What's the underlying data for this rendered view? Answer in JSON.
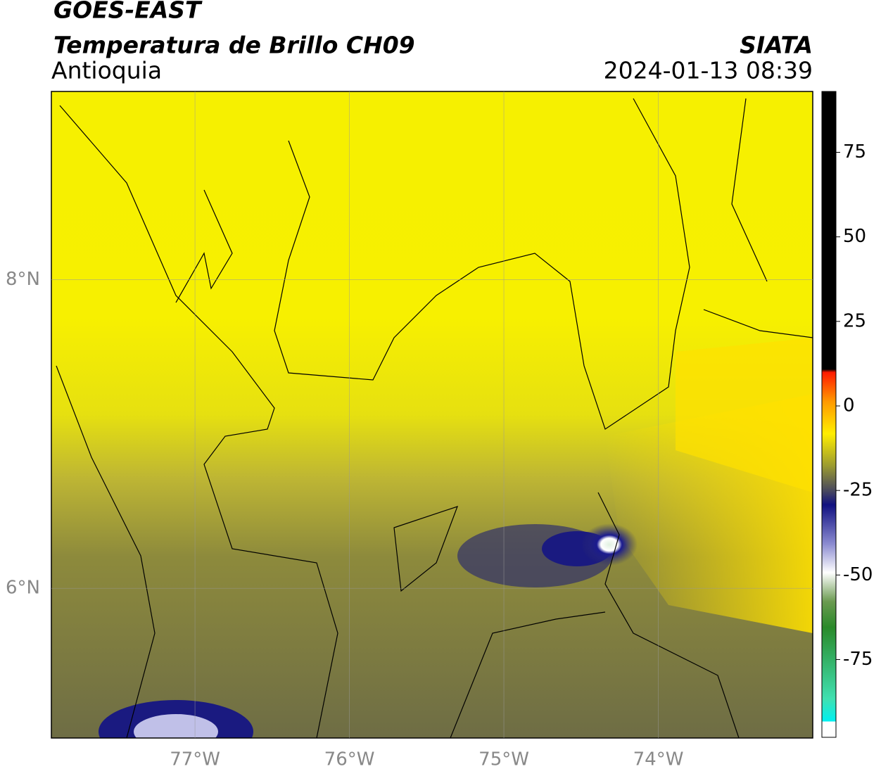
{
  "header": {
    "satellite": "GOES-EAST",
    "product": "Temperatura de Brillo CH09",
    "region": "Antioquia",
    "source": "SIATA",
    "datetime": "2024-01-13 08:39"
  },
  "map": {
    "xlim": [
      -77.93,
      -73
    ],
    "ylim": [
      5.03,
      9.22
    ],
    "xticks": [
      {
        "value": -77,
        "label": "77°W"
      },
      {
        "value": -76,
        "label": "76°W"
      },
      {
        "value": -75,
        "label": "75°W"
      },
      {
        "value": -74,
        "label": "74°W"
      }
    ],
    "yticks": [
      {
        "value": 8,
        "label": "8°N"
      },
      {
        "value": 6,
        "label": "6°N"
      }
    ],
    "grid": true
  },
  "colorbar": {
    "lim": [
      -98,
      93
    ],
    "ticks": [
      75,
      50,
      25,
      0,
      -25,
      -50,
      -75
    ]
  }
}
